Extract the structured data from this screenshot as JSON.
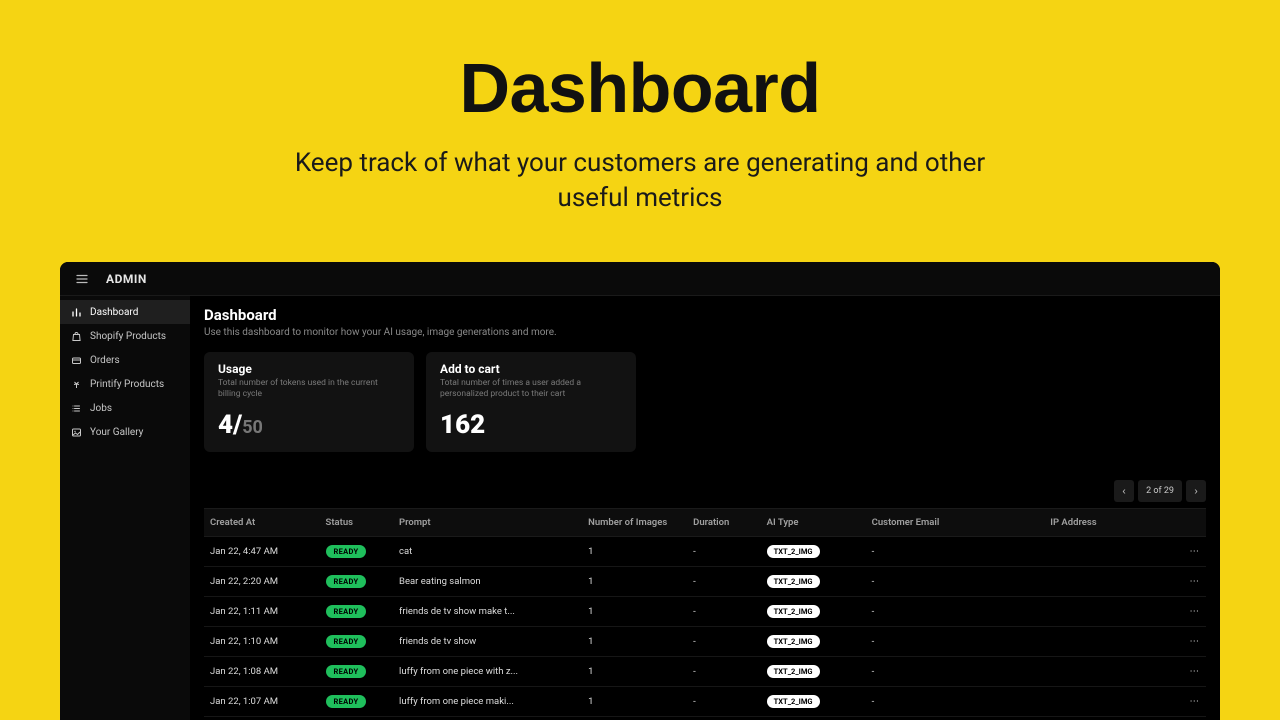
{
  "hero": {
    "title": "Dashboard",
    "subtitle": "Keep track of what your customers are generating and other useful metrics"
  },
  "topbar": {
    "brand": "ADMIN"
  },
  "sidebar": {
    "items": [
      {
        "label": "Dashboard",
        "icon": "bar-chart"
      },
      {
        "label": "Shopify Products",
        "icon": "bag"
      },
      {
        "label": "Orders",
        "icon": "card"
      },
      {
        "label": "Printify Products",
        "icon": "palm"
      },
      {
        "label": "Jobs",
        "icon": "list"
      },
      {
        "label": "Your Gallery",
        "icon": "image"
      }
    ]
  },
  "page": {
    "title": "Dashboard",
    "description": "Use this dashboard to monitor how your AI usage, image generations and more."
  },
  "cards": {
    "usage": {
      "title": "Usage",
      "desc": "Total number of tokens used in the current billing cycle",
      "value": "4/",
      "denom": "50"
    },
    "cart": {
      "title": "Add to cart",
      "desc": "Total number of times a user added a personalized product to their cart",
      "value": "162"
    }
  },
  "pager": {
    "prev": "‹",
    "label": "2 of 29",
    "next": "›"
  },
  "table": {
    "columns": [
      "Created At",
      "Status",
      "Prompt",
      "Number of Images",
      "Duration",
      "AI Type",
      "Customer Email",
      "IP Address",
      ""
    ],
    "rows": [
      {
        "created": "Jan 22, 4:47 AM",
        "status": "READY",
        "prompt": "cat",
        "num": "1",
        "duration": "-",
        "ai": "TXT_2_IMG",
        "email": "-",
        "ip": ""
      },
      {
        "created": "Jan 22, 2:20 AM",
        "status": "READY",
        "prompt": "Bear eating salmon",
        "num": "1",
        "duration": "-",
        "ai": "TXT_2_IMG",
        "email": "-",
        "ip": ""
      },
      {
        "created": "Jan 22, 1:11 AM",
        "status": "READY",
        "prompt": "friends de tv show make t...",
        "num": "1",
        "duration": "-",
        "ai": "TXT_2_IMG",
        "email": "-",
        "ip": ""
      },
      {
        "created": "Jan 22, 1:10 AM",
        "status": "READY",
        "prompt": "friends de tv show",
        "num": "1",
        "duration": "-",
        "ai": "TXT_2_IMG",
        "email": "-",
        "ip": ""
      },
      {
        "created": "Jan 22, 1:08 AM",
        "status": "READY",
        "prompt": "luffy from one piece with z...",
        "num": "1",
        "duration": "-",
        "ai": "TXT_2_IMG",
        "email": "-",
        "ip": ""
      },
      {
        "created": "Jan 22, 1:07 AM",
        "status": "READY",
        "prompt": "luffy from one piece maki...",
        "num": "1",
        "duration": "-",
        "ai": "TXT_2_IMG",
        "email": "-",
        "ip": ""
      }
    ]
  },
  "colors": {
    "page_bg": "#f5d413",
    "app_bg": "#0a0a0a",
    "card_bg": "#121212",
    "ready_badge": "#1fbf5c",
    "ai_badge_bg": "#ffffff"
  }
}
